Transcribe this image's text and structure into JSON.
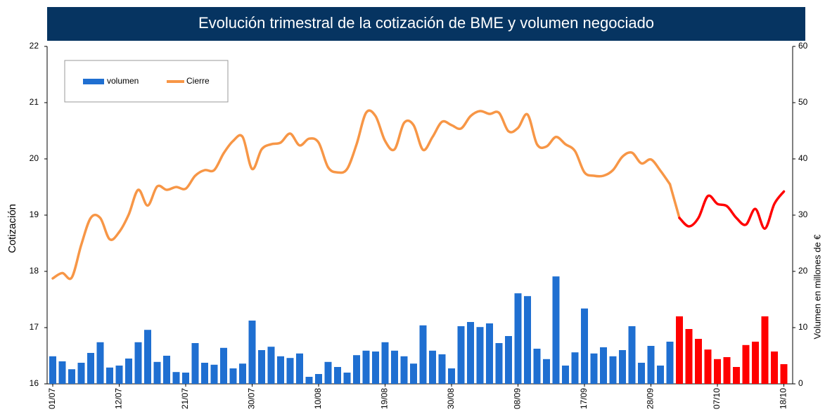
{
  "chart_data": {
    "type": "bar",
    "title": "Evolución trimestral de la cotización de BME y volumen negociado",
    "ylabel": "Cotización",
    "y2label": "Volumen en millones de €",
    "categories": [
      "01/07",
      null,
      null,
      null,
      null,
      null,
      null,
      "12/07",
      null,
      null,
      null,
      null,
      null,
      null,
      "21/07",
      null,
      null,
      null,
      null,
      null,
      null,
      "30/07",
      null,
      null,
      null,
      null,
      null,
      null,
      "10/08",
      null,
      null,
      null,
      null,
      null,
      null,
      "19/08",
      null,
      null,
      null,
      null,
      null,
      null,
      "30/08",
      null,
      null,
      null,
      null,
      null,
      null,
      "08/09",
      null,
      null,
      null,
      null,
      null,
      null,
      "17/09",
      null,
      null,
      null,
      null,
      null,
      null,
      "28/09",
      null,
      null,
      null,
      null,
      null,
      null,
      "07/10",
      null,
      null,
      null,
      null,
      null,
      null,
      "18/10"
    ],
    "series": [
      {
        "name": "volumen",
        "type": "bar",
        "axis": "y2",
        "color": "#1f6fd1",
        "values": [
          4.9,
          4.0,
          2.6,
          3.75,
          5.5,
          7.4,
          2.9,
          3.25,
          4.5,
          7.4,
          9.6,
          3.9,
          5.0,
          2.1,
          2.0,
          7.25,
          3.75,
          3.4,
          6.4,
          2.75,
          3.6,
          11.25,
          6.0,
          6.6,
          4.9,
          4.6,
          5.4,
          1.25,
          1.75,
          3.9,
          3.0,
          2.0,
          5.1,
          5.9,
          5.75,
          7.4,
          5.9,
          4.9,
          3.6,
          10.4,
          5.9,
          5.25,
          2.75,
          10.25,
          11.0,
          10.1,
          10.75,
          7.25,
          8.5,
          16.1,
          15.6,
          6.25,
          4.4,
          19.1,
          3.25,
          5.6,
          13.4,
          5.4,
          6.5,
          4.9,
          6.0,
          10.25,
          3.75,
          6.75,
          3.25,
          7.5,
          12.0,
          9.75,
          8.0,
          6.1,
          4.4,
          4.75,
          3.0,
          6.9,
          7.5,
          12.0,
          5.75,
          3.5
        ],
        "colors": [
          "#1f6fd1",
          "#1f6fd1",
          "#1f6fd1",
          "#1f6fd1",
          "#1f6fd1",
          "#1f6fd1",
          "#1f6fd1",
          "#1f6fd1",
          "#1f6fd1",
          "#1f6fd1",
          "#1f6fd1",
          "#1f6fd1",
          "#1f6fd1",
          "#1f6fd1",
          "#1f6fd1",
          "#1f6fd1",
          "#1f6fd1",
          "#1f6fd1",
          "#1f6fd1",
          "#1f6fd1",
          "#1f6fd1",
          "#1f6fd1",
          "#1f6fd1",
          "#1f6fd1",
          "#1f6fd1",
          "#1f6fd1",
          "#1f6fd1",
          "#1f6fd1",
          "#1f6fd1",
          "#1f6fd1",
          "#1f6fd1",
          "#1f6fd1",
          "#1f6fd1",
          "#1f6fd1",
          "#1f6fd1",
          "#1f6fd1",
          "#1f6fd1",
          "#1f6fd1",
          "#1f6fd1",
          "#1f6fd1",
          "#1f6fd1",
          "#1f6fd1",
          "#1f6fd1",
          "#1f6fd1",
          "#1f6fd1",
          "#1f6fd1",
          "#1f6fd1",
          "#1f6fd1",
          "#1f6fd1",
          "#1f6fd1",
          "#1f6fd1",
          "#1f6fd1",
          "#1f6fd1",
          "#1f6fd1",
          "#1f6fd1",
          "#1f6fd1",
          "#1f6fd1",
          "#1f6fd1",
          "#1f6fd1",
          "#1f6fd1",
          "#1f6fd1",
          "#1f6fd1",
          "#1f6fd1",
          "#1f6fd1",
          "#1f6fd1",
          "#1f6fd1",
          "#ff0000",
          "#ff0000",
          "#ff0000",
          "#ff0000",
          "#ff0000",
          "#ff0000",
          "#ff0000",
          "#ff0000",
          "#ff0000",
          "#ff0000",
          "#ff0000",
          "#ff0000"
        ]
      },
      {
        "name": "Cierre",
        "type": "line",
        "color": "#f79646",
        "values": [
          17.875,
          17.97,
          17.89,
          18.47,
          18.95,
          18.95,
          18.57,
          18.7,
          19.01,
          19.45,
          19.17,
          19.51,
          19.45,
          19.5,
          19.47,
          19.7,
          19.8,
          19.8,
          20.1,
          20.32,
          20.39,
          19.82,
          20.17,
          20.26,
          20.29,
          20.45,
          20.24,
          20.36,
          20.29,
          19.85,
          19.76,
          19.82,
          20.26,
          20.82,
          20.76,
          20.32,
          20.17,
          20.64,
          20.6,
          20.16,
          20.39,
          20.66,
          20.6,
          20.54,
          20.76,
          20.85,
          20.8,
          20.82,
          20.49,
          20.55,
          20.79,
          20.26,
          20.22,
          20.39,
          20.26,
          20.14,
          19.76,
          19.7,
          19.7,
          19.8,
          20.04,
          20.11,
          19.92,
          19.99,
          19.79,
          19.55,
          18.95,
          18.8,
          18.95,
          19.34,
          19.2,
          19.16,
          18.95,
          18.83,
          19.11,
          18.76,
          19.2,
          19.42
        ],
        "colors": [
          "#f79646",
          "#f79646",
          "#f79646",
          "#f79646",
          "#f79646",
          "#f79646",
          "#f79646",
          "#f79646",
          "#f79646",
          "#f79646",
          "#f79646",
          "#f79646",
          "#f79646",
          "#f79646",
          "#f79646",
          "#f79646",
          "#f79646",
          "#f79646",
          "#f79646",
          "#f79646",
          "#f79646",
          "#f79646",
          "#f79646",
          "#f79646",
          "#f79646",
          "#f79646",
          "#f79646",
          "#f79646",
          "#f79646",
          "#f79646",
          "#f79646",
          "#f79646",
          "#f79646",
          "#f79646",
          "#f79646",
          "#f79646",
          "#f79646",
          "#f79646",
          "#f79646",
          "#f79646",
          "#f79646",
          "#f79646",
          "#f79646",
          "#f79646",
          "#f79646",
          "#f79646",
          "#f79646",
          "#f79646",
          "#f79646",
          "#f79646",
          "#f79646",
          "#f79646",
          "#f79646",
          "#f79646",
          "#f79646",
          "#f79646",
          "#f79646",
          "#f79646",
          "#f79646",
          "#f79646",
          "#f79646",
          "#f79646",
          "#f79646",
          "#f79646",
          "#f79646",
          "#f79646",
          "#ff0000",
          "#ff0000",
          "#ff0000",
          "#ff0000",
          "#ff0000",
          "#ff0000",
          "#ff0000",
          "#ff0000",
          "#ff0000",
          "#ff0000",
          "#ff0000",
          "#ff0000"
        ]
      }
    ],
    "ylim": [
      16,
      22
    ],
    "yticks": [
      16,
      17,
      18,
      19,
      20,
      21,
      22
    ],
    "y2lim": [
      0,
      60
    ],
    "y2ticks": [
      0,
      10,
      20,
      30,
      40,
      50,
      60
    ],
    "grid": false,
    "legend": "upper left"
  }
}
